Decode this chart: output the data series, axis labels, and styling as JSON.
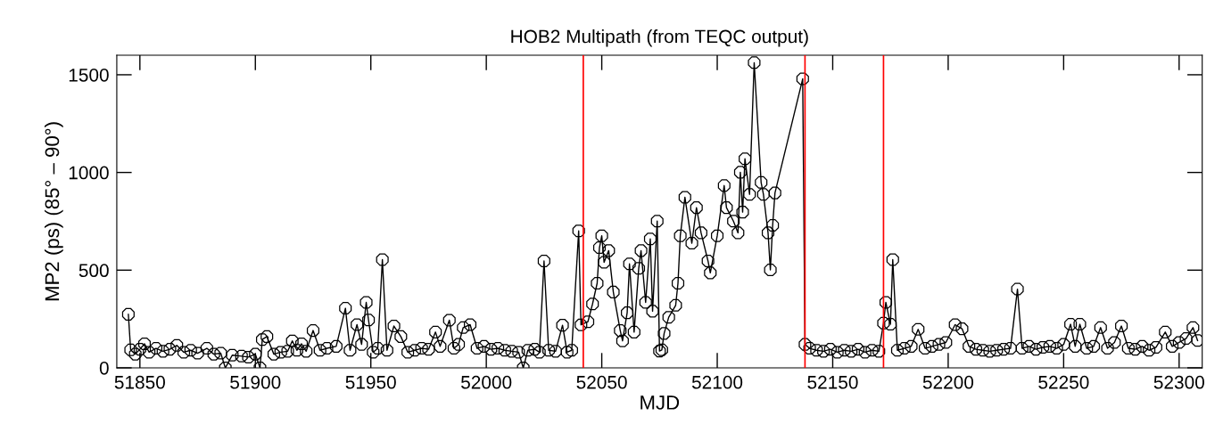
{
  "chart_data": {
    "type": "line",
    "title": "HOB2 Multipath (from TEQC output)",
    "xlabel": "MJD",
    "ylabel": "MP2 (ps) (85° – 90°)",
    "xlim": [
      51840,
      52310
    ],
    "xticks": [
      51850,
      51900,
      51950,
      52000,
      52050,
      52100,
      52150,
      52200,
      52250,
      52300
    ],
    "ylim": [
      0,
      1600
    ],
    "yticks": [
      0,
      500,
      1000,
      1500
    ],
    "grid": false,
    "legend": false,
    "marker": "circle",
    "line_style": "solid",
    "ref_lines": [
      {
        "axis": "x",
        "value": 52042,
        "color": "#ff0000"
      },
      {
        "axis": "x",
        "value": 52138,
        "color": "#ff0000"
      },
      {
        "axis": "x",
        "value": 52172,
        "color": "#ff0000"
      }
    ],
    "series": [
      {
        "color": "#000000",
        "x": [
          51845,
          51846,
          51848,
          51850,
          51852,
          51854,
          51857,
          51860,
          51863,
          51866,
          51869,
          51872,
          51875,
          51879,
          51882,
          51885,
          51887,
          51890,
          51894,
          51897,
          51900,
          51902,
          51903,
          51905,
          51908,
          51911,
          51914,
          51916,
          51918,
          51920,
          51922,
          51925,
          51928,
          51931,
          51935,
          51939,
          51941,
          51944,
          51946,
          51948,
          51949,
          51951,
          51953,
          51955,
          51957,
          51960,
          51963,
          51966,
          51969,
          51972,
          51975,
          51978,
          51980,
          51984,
          51986,
          51988,
          51990,
          51993,
          51996,
          51999,
          52002,
          52005,
          52008,
          52011,
          52014,
          52016,
          52018,
          52021,
          52023,
          52025,
          52027,
          52030,
          52033,
          52035,
          52037,
          52040,
          52041,
          52044,
          52046,
          52048,
          52049,
          52050,
          52051,
          52053,
          52055,
          52058,
          52059,
          52061,
          52062,
          52064,
          52066,
          52067,
          52069,
          52071,
          52072,
          52074,
          52075,
          52076,
          52077,
          52079,
          52082,
          52083,
          52084,
          52086,
          52089,
          52091,
          52093,
          52096,
          52097,
          52100,
          52103,
          52104,
          52107,
          52109,
          52110,
          52111,
          52112,
          52114,
          52116,
          52119,
          52120,
          52122,
          52123,
          52124,
          52125,
          52137,
          52138,
          52140,
          52143,
          52146,
          52149,
          52152,
          52155,
          52158,
          52161,
          52164,
          52167,
          52170,
          52172,
          52173,
          52175,
          52176,
          52178,
          52181,
          52184,
          52187,
          52190,
          52193,
          52196,
          52199,
          52203,
          52206,
          52209,
          52212,
          52215,
          52218,
          52221,
          52224,
          52227,
          52230,
          52232,
          52235,
          52238,
          52241,
          52244,
          52247,
          52250,
          52253,
          52255,
          52257,
          52260,
          52263,
          52266,
          52269,
          52272,
          52275,
          52278,
          52281,
          52284,
          52287,
          52290,
          52294,
          52297,
          52300,
          52303,
          52306,
          52308
        ],
        "values": [
          274,
          92,
          70,
          95,
          123,
          80,
          100,
          85,
          95,
          115,
          80,
          90,
          75,
          100,
          70,
          75,
          0,
          65,
          60,
          55,
          70,
          0,
          145,
          160,
          70,
          80,
          85,
          138,
          90,
          123,
          85,
          191,
          90,
          100,
          110,
          305,
          90,
          221,
          120,
          335,
          245,
          80,
          100,
          554,
          90,
          214,
          160,
          80,
          90,
          100,
          95,
          183,
          110,
          244,
          100,
          120,
          206,
          221,
          100,
          110,
          95,
          100,
          90,
          85,
          80,
          0,
          90,
          95,
          80,
          547,
          90,
          85,
          218,
          80,
          90,
          701,
          220,
          236,
          327,
          433,
          615,
          676,
          540,
          600,
          388,
          191,
          138,
          282,
          532,
          183,
          509,
          600,
          335,
          660,
          290,
          751,
          86,
          92,
          176,
          259,
          320,
          433,
          676,
          873,
          638,
          820,
          691,
          547,
          486,
          676,
          933,
          820,
          751,
          691,
          1001,
          797,
          1070,
          888,
          1562,
          949,
          888,
          691,
          501,
          729,
          895,
          1479,
          120,
          100,
          90,
          85,
          95,
          80,
          90,
          85,
          95,
          80,
          90,
          85,
          229,
          335,
          223,
          554,
          90,
          100,
          110,
          197,
          100,
          110,
          120,
          130,
          221,
          200,
          110,
          95,
          90,
          85,
          90,
          95,
          100,
          403,
          100,
          110,
          95,
          105,
          110,
          100,
          120,
          223,
          110,
          223,
          100,
          110,
          206,
          100,
          130,
          214,
          100,
          95,
          110,
          90,
          105,
          183,
          110,
          130,
          150,
          206,
          140
        ]
      }
    ]
  }
}
